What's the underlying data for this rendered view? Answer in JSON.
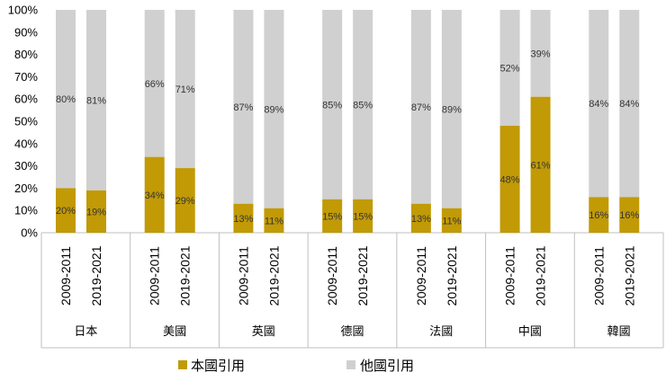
{
  "chart_data": {
    "type": "bar",
    "stacked": true,
    "colors": {
      "domestic": "#c19a06",
      "foreign": "#d0d0d0",
      "axis": "#bfbfbf"
    },
    "ylim": [
      0,
      100
    ],
    "yticks": [
      "0%",
      "10%",
      "20%",
      "30%",
      "40%",
      "50%",
      "60%",
      "70%",
      "80%",
      "90%",
      "100%"
    ],
    "series": [
      {
        "name": "本國引用",
        "color_key": "domestic"
      },
      {
        "name": "他國引用",
        "color_key": "foreign"
      }
    ],
    "groups": [
      {
        "country": "日本",
        "bars": [
          {
            "period": "2009-2011",
            "domestic": 20,
            "foreign": 80,
            "d_label": "20%",
            "f_label": "80%"
          },
          {
            "period": "2019-2021",
            "domestic": 19,
            "foreign": 81,
            "d_label": "19%",
            "f_label": "81%"
          }
        ]
      },
      {
        "country": "美國",
        "bars": [
          {
            "period": "2009-2011",
            "domestic": 34,
            "foreign": 66,
            "d_label": "34%",
            "f_label": "66%"
          },
          {
            "period": "2019-2021",
            "domestic": 29,
            "foreign": 71,
            "d_label": "29%",
            "f_label": "71%"
          }
        ]
      },
      {
        "country": "英國",
        "bars": [
          {
            "period": "2009-2011",
            "domestic": 13,
            "foreign": 87,
            "d_label": "13%",
            "f_label": "87%"
          },
          {
            "period": "2019-2021",
            "domestic": 11,
            "foreign": 89,
            "d_label": "11%",
            "f_label": "89%"
          }
        ]
      },
      {
        "country": "德國",
        "bars": [
          {
            "period": "2009-2011",
            "domestic": 15,
            "foreign": 85,
            "d_label": "15%",
            "f_label": "85%"
          },
          {
            "period": "2019-2021",
            "domestic": 15,
            "foreign": 85,
            "d_label": "15%",
            "f_label": "85%"
          }
        ]
      },
      {
        "country": "法國",
        "bars": [
          {
            "period": "2009-2011",
            "domestic": 13,
            "foreign": 87,
            "d_label": "13%",
            "f_label": "87%"
          },
          {
            "period": "2019-2021",
            "domestic": 11,
            "foreign": 89,
            "d_label": "11%",
            "f_label": "89%"
          }
        ]
      },
      {
        "country": "中國",
        "bars": [
          {
            "period": "2009-2011",
            "domestic": 48,
            "foreign": 52,
            "d_label": "48%",
            "f_label": "52%"
          },
          {
            "period": "2019-2021",
            "domestic": 61,
            "foreign": 39,
            "d_label": "61%",
            "f_label": "39%"
          }
        ]
      },
      {
        "country": "韓國",
        "bars": [
          {
            "period": "2009-2011",
            "domestic": 16,
            "foreign": 84,
            "d_label": "16%",
            "f_label": "84%"
          },
          {
            "period": "2019-2021",
            "domestic": 16,
            "foreign": 84,
            "d_label": "16%",
            "f_label": "84%"
          }
        ]
      }
    ],
    "legend": {
      "position": "bottom"
    }
  }
}
